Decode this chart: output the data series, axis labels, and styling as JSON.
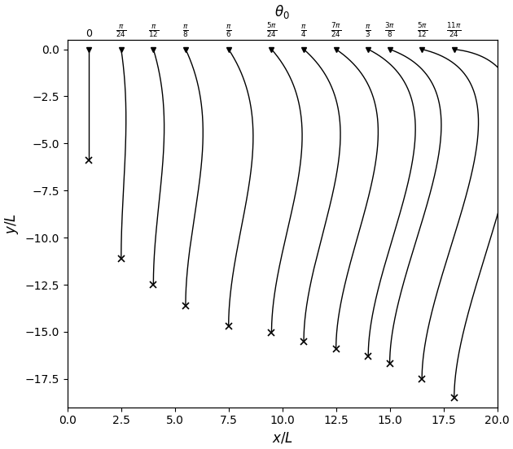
{
  "theta_labels": [
    "$0$",
    "$\\frac{\\pi}{24}$",
    "$\\frac{\\pi}{12}$",
    "$\\frac{\\pi}{8}$",
    "$\\frac{\\pi}{6}$",
    "$\\frac{5\\pi}{24}$",
    "$\\frac{\\pi}{4}$",
    "$\\frac{7\\pi}{24}$",
    "$\\frac{\\pi}{3}$",
    "$\\frac{3\\pi}{8}$",
    "$\\frac{5\\pi}{12}$",
    "$\\frac{11\\pi}{24}$"
  ],
  "x_tops": [
    1.0,
    2.5,
    4.0,
    5.5,
    7.5,
    9.5,
    11.0,
    12.5,
    14.0,
    15.0,
    16.5,
    18.0
  ],
  "x_bottoms": [
    1.0,
    2.5,
    4.0,
    5.5,
    7.5,
    9.5,
    11.0,
    12.5,
    14.0,
    15.0,
    16.5,
    18.0
  ],
  "y_bottoms": [
    -5.9,
    -11.1,
    -12.5,
    -13.6,
    -14.7,
    -15.05,
    -15.5,
    -15.9,
    -16.3,
    -16.7,
    -17.5,
    -18.5
  ],
  "theta_values": [
    0.0,
    0.1309,
    0.2618,
    0.3927,
    0.5236,
    0.6545,
    0.7854,
    0.9163,
    1.0472,
    1.1781,
    1.309,
    1.4399
  ],
  "xlabel": "$x/L$",
  "ylabel": "$y/L$",
  "top_label": "$\\theta_0$",
  "xlim": [
    0.0,
    20.0
  ],
  "ylim": [
    -19.0,
    0.5
  ],
  "figsize": [
    6.3,
    5.52
  ],
  "dpi": 100
}
